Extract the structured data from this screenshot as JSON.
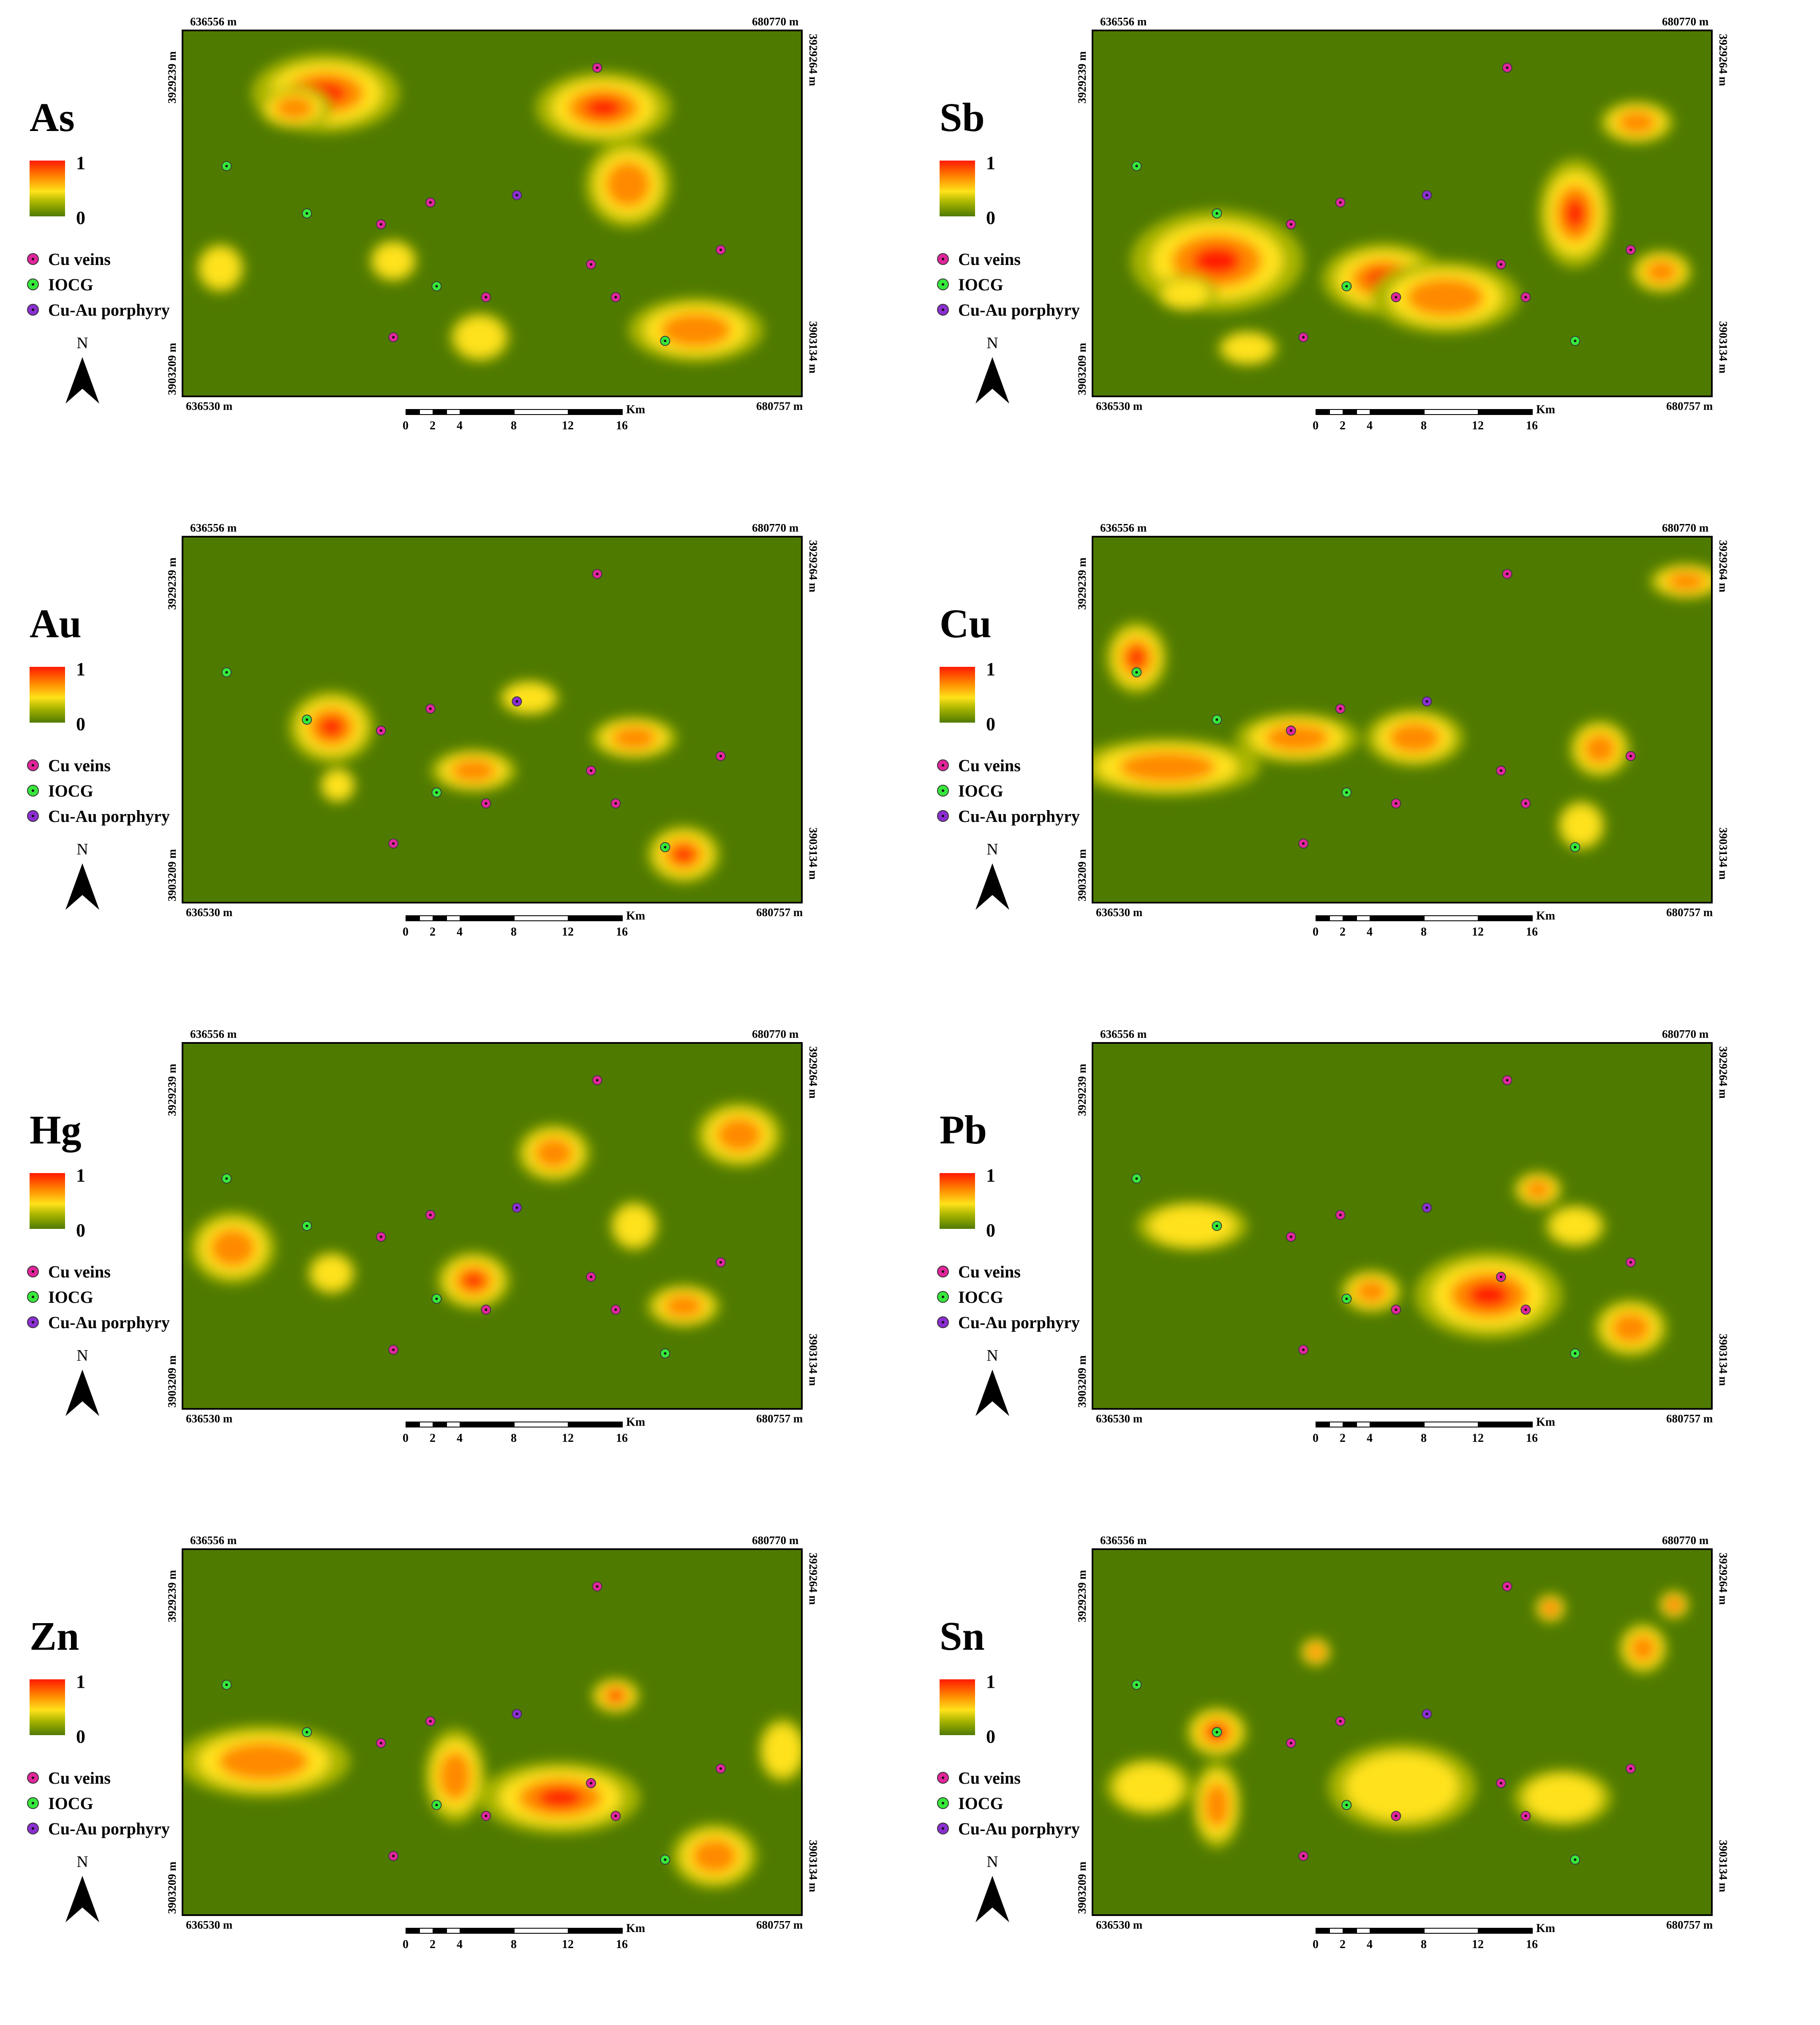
{
  "legend": {
    "ramp_max": "1",
    "ramp_min": "0",
    "items": [
      {
        "label": "Cu veins",
        "color": "#e0259a"
      },
      {
        "label": "IOCG",
        "color": "#36e83a"
      },
      {
        "label": "Cu-Au porphyry",
        "color": "#8b2fd0"
      }
    ],
    "north_label": "N"
  },
  "coords": {
    "top_left": "636556 m",
    "top_right": "680770 m",
    "bottom_left": "636530 m",
    "bottom_right": "680757 m",
    "left_top": "3929239 m",
    "left_bottom": "3903209 m",
    "right_top": "3929264 m",
    "right_bottom": "3903134 m"
  },
  "scale": {
    "unit": "Km",
    "ticks": [
      "0",
      "2",
      "4",
      "8",
      "12",
      "16"
    ]
  },
  "colors": {
    "background": "#4f7a00",
    "low": "#a7b400",
    "mid": "#ffe21a",
    "high": "#ff8a00",
    "peak": "#ff1a00"
  },
  "maps": [
    {
      "element": "As",
      "anomalies": [
        [
          0.23,
          0.17,
          0.12,
          0.11,
          0.95
        ],
        [
          0.18,
          0.21,
          0.06,
          0.06,
          0.7
        ],
        [
          0.68,
          0.21,
          0.11,
          0.1,
          0.95
        ],
        [
          0.83,
          0.82,
          0.11,
          0.09,
          0.8
        ],
        [
          0.72,
          0.42,
          0.07,
          0.12,
          0.7
        ],
        [
          0.48,
          0.84,
          0.05,
          0.07,
          0.6
        ],
        [
          0.06,
          0.65,
          0.04,
          0.07,
          0.5
        ],
        [
          0.34,
          0.63,
          0.04,
          0.06,
          0.5
        ]
      ],
      "points": [
        [
          0.67,
          0.1,
          "cu"
        ],
        [
          0.07,
          0.37,
          "iocg"
        ],
        [
          0.2,
          0.5,
          "iocg"
        ],
        [
          0.4,
          0.47,
          "cu"
        ],
        [
          0.32,
          0.53,
          "cu"
        ],
        [
          0.54,
          0.45,
          "por"
        ],
        [
          0.41,
          0.7,
          "iocg"
        ],
        [
          0.49,
          0.73,
          "cu"
        ],
        [
          0.66,
          0.64,
          "cu"
        ],
        [
          0.87,
          0.6,
          "cu"
        ],
        [
          0.7,
          0.73,
          "cu"
        ],
        [
          0.78,
          0.85,
          "iocg"
        ],
        [
          0.34,
          0.84,
          "cu"
        ]
      ]
    },
    {
      "element": "Sb",
      "anomalies": [
        [
          0.2,
          0.63,
          0.14,
          0.14,
          0.95
        ],
        [
          0.47,
          0.68,
          0.1,
          0.1,
          0.95
        ],
        [
          0.78,
          0.5,
          0.06,
          0.15,
          0.9
        ],
        [
          0.88,
          0.25,
          0.06,
          0.06,
          0.7
        ],
        [
          0.92,
          0.66,
          0.05,
          0.06,
          0.8
        ],
        [
          0.57,
          0.73,
          0.12,
          0.1,
          0.7
        ],
        [
          0.25,
          0.87,
          0.05,
          0.05,
          0.6
        ],
        [
          0.15,
          0.72,
          0.05,
          0.05,
          0.5
        ]
      ],
      "points": [
        [
          0.67,
          0.1,
          "cu"
        ],
        [
          0.07,
          0.37,
          "iocg"
        ],
        [
          0.2,
          0.5,
          "iocg"
        ],
        [
          0.4,
          0.47,
          "cu"
        ],
        [
          0.32,
          0.53,
          "cu"
        ],
        [
          0.54,
          0.45,
          "por"
        ],
        [
          0.41,
          0.7,
          "iocg"
        ],
        [
          0.49,
          0.73,
          "cu"
        ],
        [
          0.66,
          0.64,
          "cu"
        ],
        [
          0.87,
          0.6,
          "cu"
        ],
        [
          0.7,
          0.73,
          "cu"
        ],
        [
          0.78,
          0.85,
          "iocg"
        ],
        [
          0.34,
          0.84,
          "cu"
        ]
      ]
    },
    {
      "element": "Au",
      "anomalies": [
        [
          0.24,
          0.52,
          0.07,
          0.1,
          0.95
        ],
        [
          0.47,
          0.64,
          0.07,
          0.06,
          0.85
        ],
        [
          0.81,
          0.87,
          0.06,
          0.08,
          0.9
        ],
        [
          0.73,
          0.55,
          0.07,
          0.06,
          0.8
        ],
        [
          0.56,
          0.44,
          0.05,
          0.05,
          0.6
        ],
        [
          0.25,
          0.68,
          0.03,
          0.05,
          0.5
        ]
      ],
      "points": [
        [
          0.67,
          0.1,
          "cu"
        ],
        [
          0.07,
          0.37,
          "iocg"
        ],
        [
          0.2,
          0.5,
          "iocg"
        ],
        [
          0.4,
          0.47,
          "cu"
        ],
        [
          0.32,
          0.53,
          "cu"
        ],
        [
          0.54,
          0.45,
          "por"
        ],
        [
          0.41,
          0.7,
          "iocg"
        ],
        [
          0.49,
          0.73,
          "cu"
        ],
        [
          0.66,
          0.64,
          "cu"
        ],
        [
          0.87,
          0.6,
          "cu"
        ],
        [
          0.7,
          0.73,
          "cu"
        ],
        [
          0.78,
          0.85,
          "iocg"
        ],
        [
          0.34,
          0.84,
          "cu"
        ]
      ]
    },
    {
      "element": "Cu",
      "anomalies": [
        [
          0.07,
          0.33,
          0.05,
          0.1,
          0.95
        ],
        [
          0.12,
          0.63,
          0.15,
          0.08,
          0.8
        ],
        [
          0.33,
          0.55,
          0.1,
          0.07,
          0.75
        ],
        [
          0.52,
          0.55,
          0.08,
          0.08,
          0.85
        ],
        [
          0.82,
          0.58,
          0.05,
          0.08,
          0.8
        ],
        [
          0.79,
          0.79,
          0.04,
          0.07,
          0.6
        ],
        [
          0.96,
          0.12,
          0.06,
          0.05,
          0.7
        ]
      ],
      "points": [
        [
          0.67,
          0.1,
          "cu"
        ],
        [
          0.07,
          0.37,
          "iocg"
        ],
        [
          0.2,
          0.5,
          "iocg"
        ],
        [
          0.4,
          0.47,
          "cu"
        ],
        [
          0.32,
          0.53,
          "cu"
        ],
        [
          0.54,
          0.45,
          "por"
        ],
        [
          0.41,
          0.7,
          "iocg"
        ],
        [
          0.49,
          0.73,
          "cu"
        ],
        [
          0.66,
          0.64,
          "cu"
        ],
        [
          0.87,
          0.6,
          "cu"
        ],
        [
          0.7,
          0.73,
          "cu"
        ],
        [
          0.78,
          0.85,
          "iocg"
        ],
        [
          0.34,
          0.84,
          "cu"
        ]
      ]
    },
    {
      "element": "Hg",
      "anomalies": [
        [
          0.08,
          0.56,
          0.07,
          0.1,
          0.8
        ],
        [
          0.47,
          0.65,
          0.06,
          0.08,
          0.95
        ],
        [
          0.81,
          0.72,
          0.06,
          0.06,
          0.85
        ],
        [
          0.6,
          0.3,
          0.06,
          0.08,
          0.7
        ],
        [
          0.9,
          0.25,
          0.07,
          0.09,
          0.75
        ],
        [
          0.24,
          0.63,
          0.04,
          0.06,
          0.6
        ],
        [
          0.73,
          0.5,
          0.04,
          0.07,
          0.6
        ]
      ],
      "points": [
        [
          0.67,
          0.1,
          "cu"
        ],
        [
          0.07,
          0.37,
          "iocg"
        ],
        [
          0.2,
          0.5,
          "iocg"
        ],
        [
          0.4,
          0.47,
          "cu"
        ],
        [
          0.32,
          0.53,
          "cu"
        ],
        [
          0.54,
          0.45,
          "por"
        ],
        [
          0.41,
          0.7,
          "iocg"
        ],
        [
          0.49,
          0.73,
          "cu"
        ],
        [
          0.66,
          0.64,
          "cu"
        ],
        [
          0.87,
          0.6,
          "cu"
        ],
        [
          0.7,
          0.73,
          "cu"
        ],
        [
          0.78,
          0.85,
          "iocg"
        ],
        [
          0.34,
          0.84,
          "cu"
        ]
      ]
    },
    {
      "element": "Pb",
      "anomalies": [
        [
          0.64,
          0.69,
          0.12,
          0.12,
          0.9
        ],
        [
          0.45,
          0.68,
          0.05,
          0.06,
          0.8
        ],
        [
          0.87,
          0.78,
          0.06,
          0.08,
          0.8
        ],
        [
          0.16,
          0.5,
          0.09,
          0.07,
          0.6
        ],
        [
          0.72,
          0.4,
          0.04,
          0.05,
          0.7
        ],
        [
          0.78,
          0.5,
          0.05,
          0.06,
          0.65
        ]
      ],
      "points": [
        [
          0.67,
          0.1,
          "cu"
        ],
        [
          0.07,
          0.37,
          "iocg"
        ],
        [
          0.2,
          0.5,
          "iocg"
        ],
        [
          0.4,
          0.47,
          "cu"
        ],
        [
          0.32,
          0.53,
          "cu"
        ],
        [
          0.54,
          0.45,
          "por"
        ],
        [
          0.41,
          0.7,
          "iocg"
        ],
        [
          0.49,
          0.73,
          "cu"
        ],
        [
          0.66,
          0.64,
          "cu"
        ],
        [
          0.87,
          0.6,
          "cu"
        ],
        [
          0.7,
          0.73,
          "cu"
        ],
        [
          0.78,
          0.85,
          "iocg"
        ],
        [
          0.34,
          0.84,
          "cu"
        ]
      ]
    },
    {
      "element": "Zn",
      "anomalies": [
        [
          0.13,
          0.58,
          0.14,
          0.1,
          0.85
        ],
        [
          0.61,
          0.68,
          0.13,
          0.1,
          0.95
        ],
        [
          0.7,
          0.4,
          0.04,
          0.05,
          0.9
        ],
        [
          0.44,
          0.62,
          0.05,
          0.13,
          0.75
        ],
        [
          0.86,
          0.84,
          0.07,
          0.09,
          0.75
        ],
        [
          0.97,
          0.55,
          0.04,
          0.09,
          0.6
        ]
      ],
      "points": [
        [
          0.67,
          0.1,
          "cu"
        ],
        [
          0.07,
          0.37,
          "iocg"
        ],
        [
          0.2,
          0.5,
          "iocg"
        ],
        [
          0.4,
          0.47,
          "cu"
        ],
        [
          0.32,
          0.53,
          "cu"
        ],
        [
          0.54,
          0.45,
          "por"
        ],
        [
          0.41,
          0.7,
          "iocg"
        ],
        [
          0.49,
          0.73,
          "cu"
        ],
        [
          0.66,
          0.64,
          "cu"
        ],
        [
          0.87,
          0.6,
          "cu"
        ],
        [
          0.7,
          0.73,
          "cu"
        ],
        [
          0.78,
          0.85,
          "iocg"
        ],
        [
          0.34,
          0.84,
          "cu"
        ]
      ]
    },
    {
      "element": "Sn",
      "anomalies": [
        [
          0.2,
          0.5,
          0.05,
          0.07,
          0.95
        ],
        [
          0.2,
          0.7,
          0.04,
          0.12,
          0.7
        ],
        [
          0.74,
          0.16,
          0.025,
          0.04,
          0.95
        ],
        [
          0.94,
          0.15,
          0.025,
          0.04,
          0.9
        ],
        [
          0.36,
          0.28,
          0.025,
          0.04,
          0.8
        ],
        [
          0.89,
          0.27,
          0.04,
          0.07,
          0.7
        ],
        [
          0.5,
          0.65,
          0.12,
          0.12,
          0.6
        ],
        [
          0.09,
          0.65,
          0.07,
          0.08,
          0.5
        ],
        [
          0.76,
          0.68,
          0.08,
          0.08,
          0.55
        ]
      ],
      "points": [
        [
          0.67,
          0.1,
          "cu"
        ],
        [
          0.07,
          0.37,
          "iocg"
        ],
        [
          0.2,
          0.5,
          "iocg"
        ],
        [
          0.4,
          0.47,
          "cu"
        ],
        [
          0.32,
          0.53,
          "cu"
        ],
        [
          0.54,
          0.45,
          "por"
        ],
        [
          0.41,
          0.7,
          "iocg"
        ],
        [
          0.49,
          0.73,
          "cu"
        ],
        [
          0.66,
          0.64,
          "cu"
        ],
        [
          0.87,
          0.6,
          "cu"
        ],
        [
          0.7,
          0.73,
          "cu"
        ],
        [
          0.78,
          0.85,
          "iocg"
        ],
        [
          0.34,
          0.84,
          "cu"
        ]
      ]
    }
  ]
}
